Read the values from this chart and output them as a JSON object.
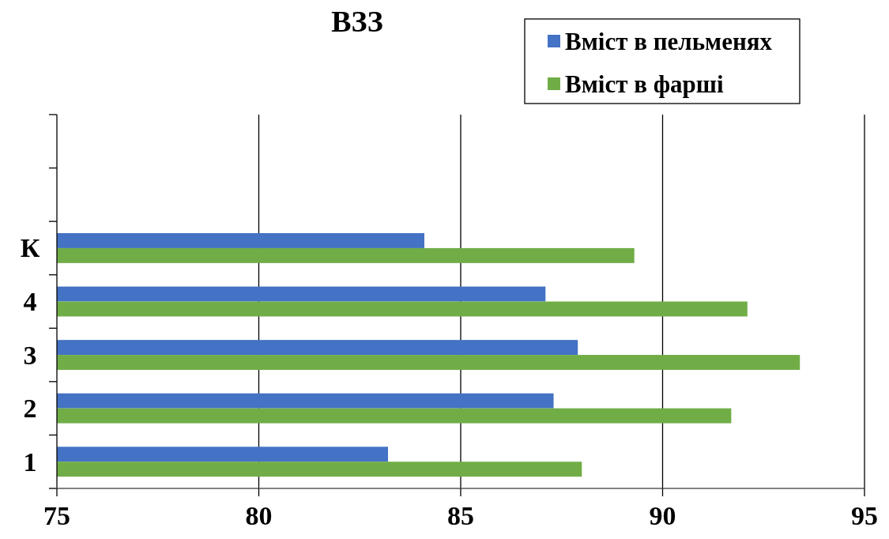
{
  "chart_data": {
    "type": "bar",
    "orientation": "horizontal",
    "title": "ВЗЗ",
    "categories": [
      null,
      null,
      "К",
      "4",
      "3",
      "2",
      "1"
    ],
    "series": [
      {
        "name": "Вміст в пельменях",
        "color": "#4472c4",
        "values": [
          null,
          null,
          84.1,
          87.1,
          87.9,
          87.3,
          83.2
        ]
      },
      {
        "name": "Вміст в фарші",
        "color": "#70ad47",
        "values": [
          null,
          null,
          89.3,
          92.1,
          93.4,
          91.7,
          88.0
        ]
      }
    ],
    "xlim": [
      75,
      95
    ],
    "xticks": [
      75,
      80,
      85,
      90,
      95
    ],
    "grid": "x",
    "legend": "top right"
  }
}
